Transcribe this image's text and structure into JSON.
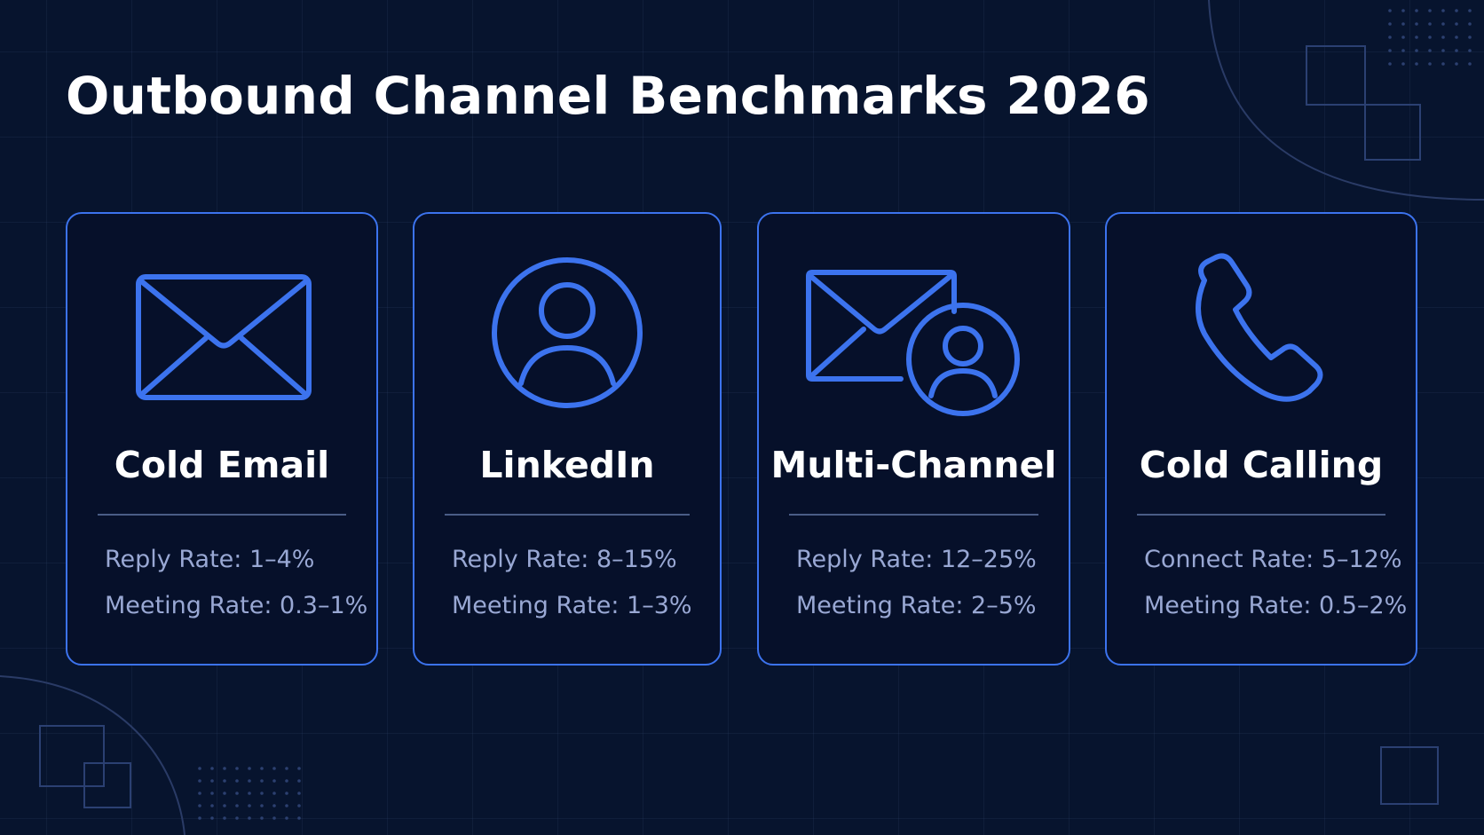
{
  "title": "Outbound Channel Benchmarks 2026",
  "colors": {
    "background": "#07142e",
    "accent": "#3c73ee",
    "card_bg": "#06102a",
    "stat_text": "#99a8d4"
  },
  "cards": [
    {
      "icon": "envelope-icon",
      "title": "Cold Email",
      "stats": [
        "Reply Rate: 1–4%",
        "Meeting Rate: 0.3–1%"
      ]
    },
    {
      "icon": "user-circle-icon",
      "title": "LinkedIn",
      "stats": [
        "Reply Rate: 8–15%",
        "Meeting Rate: 1–3%"
      ]
    },
    {
      "icon": "envelope-user-icon",
      "title": "Multi-Channel",
      "stats": [
        "Reply Rate: 12–25%",
        "Meeting Rate: 2–5%"
      ]
    },
    {
      "icon": "phone-icon",
      "title": "Cold Calling",
      "stats": [
        "Connect Rate: 5–12%",
        "Meeting Rate: 0.5–2%"
      ]
    }
  ]
}
